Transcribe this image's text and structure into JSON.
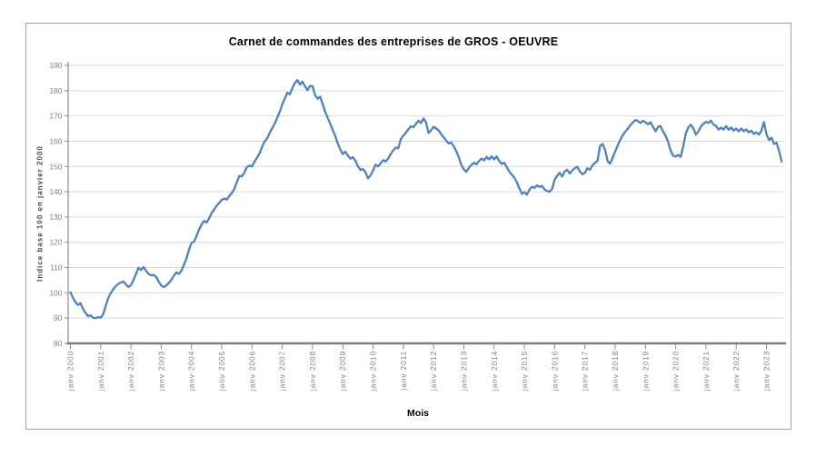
{
  "chart_data": {
    "type": "line",
    "title": "Carnet de commandes des entreprises de GROS - OEUVRE",
    "xlabel": "Mois",
    "ylabel": "Indice base 100 en janvier 2000",
    "ylim": [
      80,
      190
    ],
    "y_ticks": [
      80,
      90,
      100,
      110,
      120,
      130,
      140,
      150,
      160,
      170,
      180,
      190
    ],
    "x_tick_labels": [
      "janv 2000",
      "janv 2001",
      "janv 2002",
      "janv 2003",
      "janv 2004",
      "janv 2005",
      "janv 2006",
      "janv 2007",
      "janv 2008",
      "janv 2009",
      "janv 2010",
      "janv 2011",
      "janv 2012",
      "janv 2013",
      "janv 2014",
      "janv 2015",
      "janv 2016",
      "janv 2017",
      "janv 2018",
      "janv 2019",
      "janv 2020",
      "janv 2021",
      "janv 2022",
      "janv 2023"
    ],
    "x_unit": "month",
    "x_tick_every_months": 12,
    "grid": "horizontal",
    "legend": "none",
    "colors": {
      "line": "#4F81BD",
      "grid": "#D9D9D9",
      "axis": "#8C8C8C",
      "tick_text": "#808080",
      "frame": "#A3A3A3"
    },
    "series": [
      {
        "start": "janv 2000",
        "frequency": "monthly",
        "values": [
          100.2,
          98.0,
          96.3,
          95.2,
          95.9,
          93.6,
          92.1,
          90.7,
          91.1,
          90.1,
          90.0,
          90.4,
          90.2,
          91.5,
          94.9,
          97.9,
          99.9,
          101.5,
          102.7,
          103.5,
          104.1,
          104.5,
          103.3,
          102.3,
          103.0,
          105.1,
          107.5,
          109.9,
          109.0,
          110.2,
          108.7,
          107.5,
          106.9,
          107.1,
          106.3,
          104.5,
          102.9,
          102.3,
          102.9,
          103.9,
          105.1,
          106.7,
          108.1,
          107.5,
          108.7,
          111.1,
          113.5,
          117.0,
          119.8,
          120.2,
          122.5,
          125.0,
          127.0,
          128.5,
          127.8,
          129.5,
          131.5,
          133.0,
          134.5,
          135.5,
          136.8,
          137.3,
          136.9,
          138.3,
          139.5,
          141.2,
          143.8,
          146.3,
          146.0,
          147.7,
          149.8,
          150.3,
          150.0,
          151.9,
          153.5,
          155.2,
          157.8,
          159.9,
          161.1,
          163.3,
          165.1,
          166.9,
          169.3,
          171.7,
          174.5,
          176.8,
          179.2,
          178.5,
          181.0,
          183.0,
          184.2,
          182.4,
          183.6,
          181.8,
          180.2,
          181.9,
          181.8,
          178.3,
          176.8,
          177.6,
          174.8,
          171.7,
          169.3,
          166.9,
          164.5,
          162.1,
          159.1,
          156.7,
          154.9,
          155.9,
          154.3,
          153.1,
          153.7,
          152.3,
          150.1,
          148.6,
          149.0,
          147.7,
          145.3,
          146.5,
          148.3,
          150.7,
          150.0,
          151.3,
          152.5,
          152.0,
          153.1,
          154.9,
          156.3,
          157.5,
          157.2,
          160.8,
          162.2,
          163.3,
          164.7,
          165.9,
          165.5,
          166.9,
          168.1,
          167.2,
          169.0,
          167.5,
          163.3,
          164.3,
          165.7,
          165.0,
          164.3,
          162.8,
          161.5,
          160.3,
          159.1,
          159.5,
          157.9,
          156.1,
          153.7,
          150.6,
          148.8,
          147.9,
          149.5,
          150.6,
          151.5,
          150.8,
          152.2,
          153.1,
          152.4,
          153.8,
          152.8,
          154.0,
          152.8,
          154.0,
          152.2,
          151.0,
          151.5,
          149.8,
          148.0,
          146.8,
          145.6,
          143.8,
          141.4,
          139.2,
          139.9,
          138.8,
          140.8,
          142.0,
          141.5,
          142.6,
          141.9,
          142.3,
          140.9,
          140.3,
          140.0,
          141.2,
          144.8,
          146.3,
          147.5,
          146.0,
          148.1,
          148.7,
          147.2,
          148.4,
          149.3,
          149.9,
          148.1,
          146.9,
          147.5,
          149.3,
          148.7,
          150.5,
          151.4,
          152.3,
          158.1,
          158.9,
          156.5,
          152.1,
          151.1,
          153.5,
          155.9,
          158.3,
          160.5,
          162.4,
          163.8,
          164.9,
          166.3,
          167.4,
          168.4,
          168.0,
          167.2,
          168.1,
          167.5,
          166.7,
          167.5,
          165.7,
          163.9,
          165.7,
          166.0,
          163.9,
          162.1,
          159.7,
          156.3,
          154.3,
          153.9,
          154.6,
          153.8,
          158.0,
          163.0,
          165.5,
          166.5,
          165.2,
          162.6,
          163.9,
          165.8,
          166.9,
          167.7,
          167.2,
          168.1,
          166.6,
          166.0,
          164.6,
          165.4,
          164.6,
          166.0,
          164.5,
          165.4,
          164.2,
          165.0,
          163.9,
          165.1,
          163.9,
          164.7,
          163.5,
          164.1,
          162.9,
          163.5,
          162.6,
          164.1,
          167.6,
          162.8,
          160.5,
          161.4,
          158.9,
          159.4,
          156.0,
          152.0
        ]
      }
    ]
  }
}
